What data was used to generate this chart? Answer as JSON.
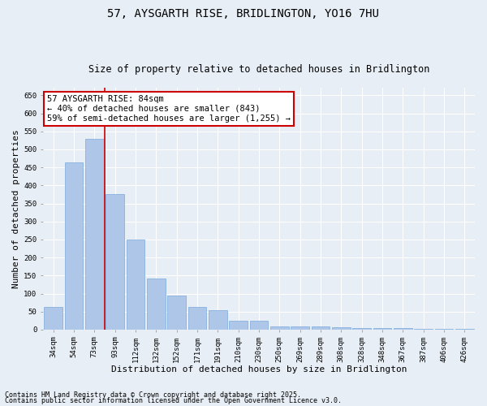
{
  "title": "57, AYSGARTH RISE, BRIDLINGTON, YO16 7HU",
  "subtitle": "Size of property relative to detached houses in Bridlington",
  "xlabel": "Distribution of detached houses by size in Bridlington",
  "ylabel": "Number of detached properties",
  "categories": [
    "34sqm",
    "54sqm",
    "73sqm",
    "93sqm",
    "112sqm",
    "132sqm",
    "152sqm",
    "171sqm",
    "191sqm",
    "210sqm",
    "230sqm",
    "250sqm",
    "269sqm",
    "289sqm",
    "308sqm",
    "328sqm",
    "348sqm",
    "367sqm",
    "387sqm",
    "406sqm",
    "426sqm"
  ],
  "values": [
    62,
    463,
    530,
    375,
    250,
    142,
    95,
    63,
    55,
    25,
    25,
    10,
    10,
    8,
    7,
    5,
    4,
    4,
    3,
    3,
    2
  ],
  "bar_color": "#aec6e8",
  "bar_edgecolor": "#7aabdc",
  "background_color": "#e8eef5",
  "grid_color": "#ffffff",
  "red_line_x": 2.5,
  "red_line_color": "#cc0000",
  "annotation_text": "57 AYSGARTH RISE: 84sqm\n← 40% of detached houses are smaller (843)\n59% of semi-detached houses are larger (1,255) →",
  "annotation_box_facecolor": "#ffffff",
  "annotation_box_edgecolor": "#cc0000",
  "ylim": [
    0,
    670
  ],
  "yticks": [
    0,
    50,
    100,
    150,
    200,
    250,
    300,
    350,
    400,
    450,
    500,
    550,
    600,
    650
  ],
  "footer_line1": "Contains HM Land Registry data © Crown copyright and database right 2025.",
  "footer_line2": "Contains public sector information licensed under the Open Government Licence v3.0.",
  "title_fontsize": 10,
  "subtitle_fontsize": 8.5,
  "tick_fontsize": 6.5,
  "ylabel_fontsize": 8,
  "xlabel_fontsize": 8,
  "annotation_fontsize": 7.5,
  "footer_fontsize": 6
}
